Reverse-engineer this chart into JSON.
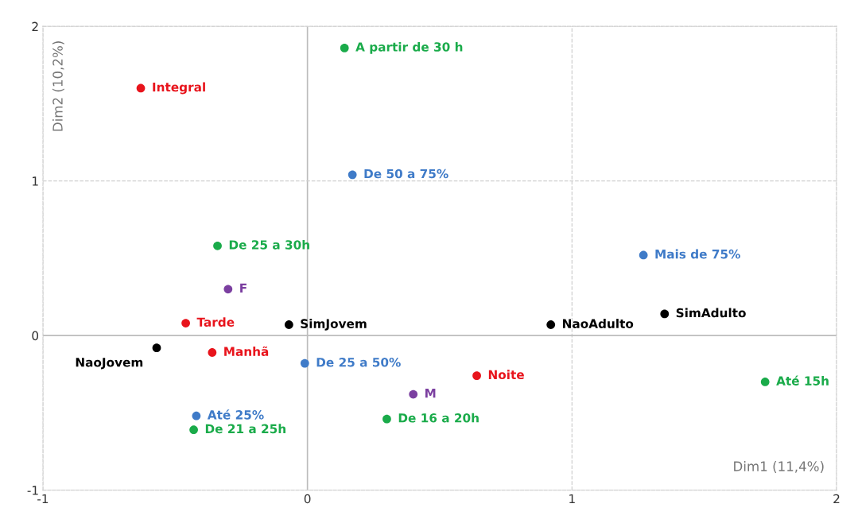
{
  "chart_data": {
    "type": "scatter",
    "xlabel": "Dim1 (11,4%)",
    "ylabel": "Dim2 (10,2%)",
    "xlim": [
      -1,
      2
    ],
    "ylim": [
      -1,
      2
    ],
    "xticks": [
      -1,
      0,
      1,
      2
    ],
    "yticks": [
      -1,
      0,
      1,
      2
    ],
    "grid": true,
    "marker": "circle",
    "series": [
      {
        "name": "A partir de 30 h",
        "color": "#1aab4a",
        "x": [
          0.14
        ],
        "values": [
          1.86
        ]
      },
      {
        "name": "Integral",
        "color": "#e8141c",
        "x": [
          -0.63
        ],
        "values": [
          1.6
        ]
      },
      {
        "name": "De 50 a 75%",
        "color": "#3f7bc8",
        "x": [
          0.17
        ],
        "values": [
          1.04
        ]
      },
      {
        "name": "De 25 a 30h",
        "color": "#1aab4a",
        "x": [
          -0.34
        ],
        "values": [
          0.58
        ]
      },
      {
        "name": "Mais de 75%",
        "color": "#3f7bc8",
        "x": [
          1.27
        ],
        "values": [
          0.52
        ]
      },
      {
        "name": "F",
        "color": "#7b3fa0",
        "x": [
          -0.3
        ],
        "values": [
          0.3
        ]
      },
      {
        "name": "Tarde",
        "color": "#e8141c",
        "x": [
          -0.46
        ],
        "values": [
          0.08
        ]
      },
      {
        "name": "SimJovem",
        "color": "#000000",
        "x": [
          -0.07
        ],
        "values": [
          0.07
        ]
      },
      {
        "name": "NaoAdulto",
        "color": "#000000",
        "x": [
          0.92
        ],
        "values": [
          0.07
        ]
      },
      {
        "name": "SimAdulto",
        "color": "#000000",
        "x": [
          1.35
        ],
        "values": [
          0.14
        ]
      },
      {
        "name": "NaoJovem",
        "color": "#000000",
        "x": [
          -0.57
        ],
        "values": [
          -0.08
        ]
      },
      {
        "name": "Manhã",
        "color": "#e8141c",
        "x": [
          -0.36
        ],
        "values": [
          -0.11
        ]
      },
      {
        "name": "De 25 a 50%",
        "color": "#3f7bc8",
        "x": [
          -0.01
        ],
        "values": [
          -0.18
        ]
      },
      {
        "name": "Noite",
        "color": "#e8141c",
        "x": [
          0.64
        ],
        "values": [
          -0.26
        ]
      },
      {
        "name": "Até 15h",
        "color": "#1aab4a",
        "x": [
          1.73
        ],
        "values": [
          -0.3
        ]
      },
      {
        "name": "M",
        "color": "#7b3fa0",
        "x": [
          0.4
        ],
        "values": [
          -0.38
        ]
      },
      {
        "name": "Até 25%",
        "color": "#3f7bc8",
        "x": [
          -0.42
        ],
        "values": [
          -0.52
        ]
      },
      {
        "name": "De 16 a 20h",
        "color": "#1aab4a",
        "x": [
          0.3
        ],
        "values": [
          -0.54
        ]
      },
      {
        "name": "De 21 a 25h",
        "color": "#1aab4a",
        "x": [
          -0.43
        ],
        "values": [
          -0.61
        ]
      }
    ]
  }
}
